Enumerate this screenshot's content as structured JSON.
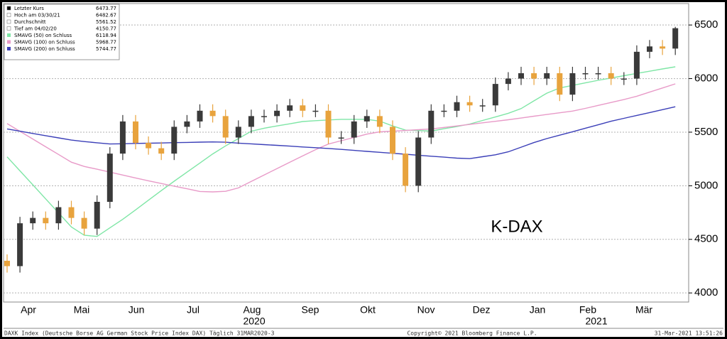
{
  "chart_data": {
    "type": "candlestick",
    "annotation": "K-DAX",
    "categories": [
      null,
      null,
      null,
      null,
      null,
      null,
      null,
      null,
      null,
      null,
      null,
      null,
      null,
      null,
      null,
      null,
      null,
      null,
      null,
      null,
      null,
      null,
      null,
      null,
      null,
      null,
      null,
      null,
      null,
      null,
      null,
      null,
      null,
      null,
      null,
      null,
      null,
      null,
      null,
      null,
      null,
      null,
      null,
      null,
      null,
      null,
      null,
      null,
      null,
      null,
      null,
      null,
      null
    ],
    "open": [
      4300,
      4250,
      4650,
      4700,
      4650,
      4800,
      4700,
      4600,
      4850,
      5300,
      5600,
      5400,
      5350,
      5300,
      5550,
      5600,
      5700,
      5650,
      5450,
      5550,
      5650,
      5650,
      5700,
      5750,
      5700,
      5700,
      5450,
      5450,
      5600,
      5650,
      5550,
      5300,
      5000,
      5450,
      5700,
      5700,
      5780,
      5750,
      5750,
      5950,
      6000,
      6050,
      6000,
      6050,
      5850,
      6050,
      6050,
      6050,
      6000,
      6000,
      6250,
      6300,
      6280
    ],
    "high": [
      4360,
      4710,
      4760,
      4760,
      4860,
      4860,
      4760,
      4910,
      5360,
      5660,
      5660,
      5460,
      5410,
      5610,
      5660,
      5760,
      5760,
      5710,
      5610,
      5710,
      5710,
      5760,
      5810,
      5810,
      5760,
      5760,
      5510,
      5660,
      5710,
      5710,
      5610,
      5360,
      5510,
      5760,
      5760,
      5840,
      5840,
      5810,
      6010,
      6060,
      6110,
      6110,
      6110,
      6110,
      6110,
      6110,
      6110,
      6110,
      6060,
      6310,
      6360,
      6360,
      6483
    ],
    "low": [
      4190,
      4190,
      4590,
      4590,
      4590,
      4640,
      4540,
      4540,
      4790,
      5240,
      5340,
      5290,
      5240,
      5240,
      5490,
      5540,
      5590,
      5390,
      5390,
      5490,
      5590,
      5590,
      5640,
      5640,
      5640,
      5390,
      5390,
      5390,
      5540,
      5490,
      5240,
      4940,
      4940,
      5390,
      5640,
      5640,
      5690,
      5690,
      5690,
      5890,
      5940,
      5940,
      5940,
      5790,
      5790,
      5990,
      5990,
      5940,
      5940,
      5940,
      6190,
      6220,
      6220
    ],
    "close": [
      4250,
      4650,
      4700,
      4650,
      4800,
      4700,
      4600,
      4850,
      5300,
      5600,
      5400,
      5350,
      5300,
      5550,
      5600,
      5700,
      5650,
      5450,
      5550,
      5650,
      5650,
      5700,
      5750,
      5700,
      5700,
      5450,
      5450,
      5600,
      5650,
      5550,
      5300,
      5000,
      5450,
      5700,
      5700,
      5780,
      5750,
      5750,
      5950,
      6000,
      6050,
      6000,
      6050,
      5850,
      6050,
      6050,
      6050,
      6000,
      6000,
      6250,
      6300,
      6280,
      6470
    ],
    "up_color": "#3a3a3a",
    "down_color": "#e8a33d",
    "series": [
      {
        "name": "SMAVG (50)  on Schluss",
        "color": "#7fe6a6",
        "last": 6118.94,
        "values": [
          5270,
          5139,
          5009,
          4878,
          4747,
          4616,
          4538,
          4527,
          4607,
          4687,
          4775,
          4865,
          4955,
          5042,
          5127,
          5212,
          5297,
          5372,
          5440,
          5509,
          5537,
          5558,
          5578,
          5599,
          5607,
          5614,
          5620,
          5620,
          5620,
          5603,
          5558,
          5519,
          5515,
          5510,
          5532,
          5552,
          5576,
          5609,
          5642,
          5676,
          5720,
          5792,
          5864,
          5912,
          5936,
          5960,
          5984,
          6005,
          6027,
          6048,
          6069,
          6090,
          6110
        ]
      },
      {
        "name": "SMAVG (100)  on Schluss",
        "color": "#e89ac8",
        "last": 5968.77,
        "values": [
          5580,
          5508,
          5436,
          5364,
          5292,
          5220,
          5180,
          5154,
          5127,
          5100,
          5073,
          5046,
          5021,
          4996,
          4972,
          4947,
          4943,
          4948,
          4980,
          5040,
          5100,
          5160,
          5219,
          5278,
          5337,
          5389,
          5420,
          5451,
          5482,
          5503,
          5509,
          5516,
          5523,
          5530,
          5544,
          5558,
          5572,
          5587,
          5601,
          5616,
          5632,
          5649,
          5665,
          5681,
          5697,
          5722,
          5750,
          5777,
          5804,
          5835,
          5874,
          5912,
          5951
        ]
      },
      {
        "name": "SMAVG (200)  on Schluss",
        "color": "#3b3fb8",
        "last": 5744.77,
        "values": [
          5530,
          5509,
          5488,
          5467,
          5447,
          5426,
          5412,
          5401,
          5390,
          5392,
          5395,
          5397,
          5399,
          5402,
          5404,
          5407,
          5409,
          5406,
          5398,
          5391,
          5384,
          5377,
          5370,
          5362,
          5355,
          5348,
          5339,
          5330,
          5321,
          5312,
          5303,
          5294,
          5285,
          5276,
          5267,
          5258,
          5253,
          5271,
          5289,
          5317,
          5360,
          5403,
          5440,
          5472,
          5504,
          5537,
          5569,
          5602,
          5629,
          5656,
          5683,
          5710,
          5737
        ]
      }
    ],
    "legend_stats": [
      {
        "name": "Letzter Kurs",
        "value": 6473.77
      },
      {
        "name": "Hoch am 03/30/21",
        "value": 6482.67
      },
      {
        "name": "Durchschnitt",
        "value": 5561.52
      },
      {
        "name": "Tief am 04/02/20",
        "value": 4150.77
      }
    ],
    "ylim": [
      3915,
      6700
    ],
    "yticks": [
      4000,
      4500,
      5000,
      5500,
      6000,
      6500
    ],
    "grid": true,
    "xticks": [
      {
        "value": 1.66,
        "label": "Apr"
      },
      {
        "value": 5.8,
        "label": "Mai"
      },
      {
        "value": 10.06,
        "label": "Jun"
      },
      {
        "value": 14.48,
        "label": "Jul"
      },
      {
        "value": 19.06,
        "label": "Aug"
      },
      {
        "value": 23.59,
        "label": "Sep"
      },
      {
        "value": 28.07,
        "label": "Okt"
      },
      {
        "value": 32.6,
        "label": "Nov"
      },
      {
        "value": 36.91,
        "label": "Dez"
      },
      {
        "value": 41.27,
        "label": "Jan"
      },
      {
        "value": 45.19,
        "label": "Feb"
      },
      {
        "value": 49.56,
        "label": "Mär"
      }
    ],
    "year_labels": [
      {
        "value": 19.23,
        "label": "2020"
      },
      {
        "value": 45.86,
        "label": "2021"
      }
    ],
    "footer_left": "DAXK Index (Deutsche Borse AG German Stock Price Index DAX)  Täglich 31MAR2020-3",
    "footer_center": "Copyright© 2021 Bloomberg Finance L.P.",
    "footer_right": "31-Mar-2021 13:51:26"
  }
}
